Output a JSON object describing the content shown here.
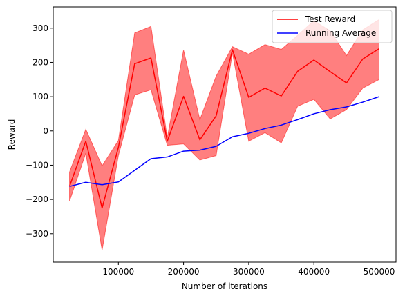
{
  "chart_data": {
    "type": "line",
    "xlabel": "Number of iterations",
    "ylabel": "Reward",
    "xlim": [
      0,
      526000
    ],
    "ylim": [
      -383,
      362
    ],
    "x_ticks": [
      100000,
      200000,
      300000,
      400000,
      500000
    ],
    "x_tick_labels": [
      "100000",
      "200000",
      "300000",
      "400000",
      "500000"
    ],
    "y_ticks": [
      -300,
      -200,
      -100,
      0,
      100,
      200,
      300
    ],
    "y_tick_labels": [
      "−300",
      "−200",
      "−100",
      "0",
      "100",
      "200",
      "300"
    ],
    "grid": false,
    "legend_position": "top-right",
    "x": [
      25000,
      50000,
      75000,
      100000,
      125000,
      150000,
      175000,
      200000,
      225000,
      250000,
      275000,
      300000,
      325000,
      350000,
      375000,
      400000,
      425000,
      450000,
      475000,
      500000
    ],
    "series": [
      {
        "name": "Test Reward",
        "color": "#ff0000",
        "values": [
          -162,
          -30,
          -225,
          -48,
          196,
          213,
          -30,
          101,
          -26,
          44,
          237,
          98,
          125,
          102,
          174,
          207,
          173,
          140,
          210,
          240
        ],
        "band_lower": [
          -205,
          -65,
          -348,
          -72,
          105,
          120,
          -42,
          -38,
          -85,
          -72,
          228,
          -30,
          -5,
          -35,
          72,
          92,
          35,
          62,
          125,
          150
        ],
        "band_upper": [
          -120,
          5,
          -102,
          -28,
          286,
          305,
          -20,
          236,
          33,
          160,
          246,
          224,
          252,
          238,
          279,
          322,
          292,
          220,
          295,
          325
        ],
        "band_color": "#ff0000",
        "band_opacity": 0.5
      },
      {
        "name": "Running Average",
        "color": "#0000ff",
        "values": [
          -162,
          -150,
          -157,
          -149,
          -115,
          -81,
          -76,
          -59,
          -56,
          -45,
          -17,
          -7,
          7,
          17,
          33,
          50,
          62,
          70,
          84,
          100
        ]
      }
    ]
  }
}
